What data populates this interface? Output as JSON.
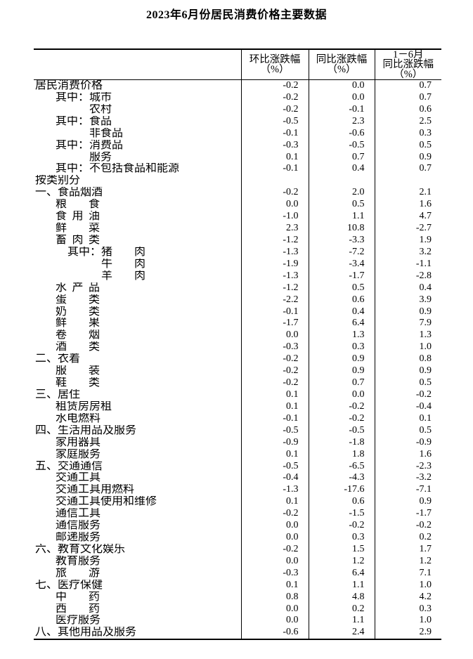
{
  "title": "2023年6月份居民消费价格主要数据",
  "colors": {
    "text": "#000000",
    "background": "#ffffff",
    "border": "#000000"
  },
  "table": {
    "columns": [
      {
        "label": ""
      },
      {
        "label": "环比涨跌幅\n（%）"
      },
      {
        "label": "同比涨跌幅\n（%）"
      },
      {
        "label": "1－6月\n同比涨跌幅\n（%）"
      }
    ],
    "rows": [
      {
        "level": 0,
        "prefix": "",
        "label": "居民消费价格",
        "sp": false,
        "mom": "-0.2",
        "yoy": "0.0",
        "ytd": "0.7"
      },
      {
        "level": 1,
        "prefix": "其中：",
        "label": "城市",
        "sp": false,
        "mom": "-0.2",
        "yoy": "0.0",
        "ytd": "0.7"
      },
      {
        "level": 2,
        "prefix": "",
        "label": "农村",
        "sp": false,
        "mom": "-0.2",
        "yoy": "-0.1",
        "ytd": "0.6"
      },
      {
        "level": 1,
        "prefix": "其中：",
        "label": "食品",
        "sp": false,
        "mom": "-0.5",
        "yoy": "2.3",
        "ytd": "2.5"
      },
      {
        "level": 2,
        "prefix": "",
        "label": "非食品",
        "sp": false,
        "mom": "-0.1",
        "yoy": "-0.6",
        "ytd": "0.3"
      },
      {
        "level": 1,
        "prefix": "其中：",
        "label": "消费品",
        "sp": false,
        "mom": "-0.3",
        "yoy": "-0.5",
        "ytd": "0.5"
      },
      {
        "level": 2,
        "prefix": "",
        "label": "服务",
        "sp": false,
        "mom": "0.1",
        "yoy": "0.7",
        "ytd": "0.9"
      },
      {
        "level": 1,
        "prefix": "其中：",
        "label": "不包括食品和能源",
        "sp": false,
        "mom": "-0.1",
        "yoy": "0.4",
        "ytd": "0.7"
      },
      {
        "level": 0,
        "prefix": "",
        "label": "按类别分",
        "sp": false,
        "mom": "",
        "yoy": "",
        "ytd": ""
      },
      {
        "level": 0,
        "prefix": "",
        "label": "一、食品烟酒",
        "sp": false,
        "mom": "-0.2",
        "yoy": "2.0",
        "ytd": "2.1"
      },
      {
        "level": 1,
        "prefix": "",
        "label": "粮食",
        "sp": true,
        "mom": "0.0",
        "yoy": "0.5",
        "ytd": "1.6"
      },
      {
        "level": 1,
        "prefix": "",
        "label": "食用油",
        "sp": true,
        "mom": "-1.0",
        "yoy": "1.1",
        "ytd": "4.7"
      },
      {
        "level": 1,
        "prefix": "",
        "label": "鲜菜",
        "sp": true,
        "mom": "2.3",
        "yoy": "10.8",
        "ytd": "-2.7"
      },
      {
        "level": 1,
        "prefix": "",
        "label": "畜肉类",
        "sp": true,
        "mom": "-1.2",
        "yoy": "-3.3",
        "ytd": "1.9"
      },
      {
        "level": 3,
        "prefix": "其中：",
        "label": "猪肉",
        "sp": true,
        "mom": "-1.3",
        "yoy": "-7.2",
        "ytd": "3.2"
      },
      {
        "level": 4,
        "prefix": "",
        "label": "牛肉",
        "sp": true,
        "mom": "-1.9",
        "yoy": "-3.4",
        "ytd": "-1.1"
      },
      {
        "level": 4,
        "prefix": "",
        "label": "羊肉",
        "sp": true,
        "mom": "-1.3",
        "yoy": "-1.7",
        "ytd": "-2.8"
      },
      {
        "level": 1,
        "prefix": "",
        "label": "水产品",
        "sp": true,
        "mom": "-1.2",
        "yoy": "0.5",
        "ytd": "0.4"
      },
      {
        "level": 1,
        "prefix": "",
        "label": "蛋类",
        "sp": true,
        "mom": "-2.2",
        "yoy": "0.6",
        "ytd": "3.9"
      },
      {
        "level": 1,
        "prefix": "",
        "label": "奶类",
        "sp": true,
        "mom": "-0.1",
        "yoy": "0.4",
        "ytd": "0.9"
      },
      {
        "level": 1,
        "prefix": "",
        "label": "鲜果",
        "sp": true,
        "mom": "-1.7",
        "yoy": "6.4",
        "ytd": "7.9"
      },
      {
        "level": 1,
        "prefix": "",
        "label": "卷烟",
        "sp": true,
        "mom": "0.0",
        "yoy": "1.3",
        "ytd": "1.3"
      },
      {
        "level": 1,
        "prefix": "",
        "label": "酒类",
        "sp": true,
        "mom": "-0.3",
        "yoy": "0.3",
        "ytd": "1.0"
      },
      {
        "level": 0,
        "prefix": "",
        "label": "二、衣着",
        "sp": false,
        "mom": "-0.2",
        "yoy": "0.9",
        "ytd": "0.8"
      },
      {
        "level": 1,
        "prefix": "",
        "label": "服装",
        "sp": true,
        "mom": "-0.2",
        "yoy": "0.9",
        "ytd": "0.9"
      },
      {
        "level": 1,
        "prefix": "",
        "label": "鞋类",
        "sp": true,
        "mom": "-0.2",
        "yoy": "0.7",
        "ytd": "0.5"
      },
      {
        "level": 0,
        "prefix": "",
        "label": "三、居住",
        "sp": false,
        "mom": "0.1",
        "yoy": "0.0",
        "ytd": "-0.2"
      },
      {
        "level": 1,
        "prefix": "",
        "label": "租赁房房租",
        "sp": false,
        "mom": "0.1",
        "yoy": "-0.2",
        "ytd": "-0.4"
      },
      {
        "level": 1,
        "prefix": "",
        "label": "水电燃料",
        "sp": false,
        "mom": "-0.1",
        "yoy": "-0.2",
        "ytd": "0.1"
      },
      {
        "level": 0,
        "prefix": "",
        "label": "四、生活用品及服务",
        "sp": false,
        "mom": "-0.5",
        "yoy": "-0.5",
        "ytd": "0.5"
      },
      {
        "level": 1,
        "prefix": "",
        "label": "家用器具",
        "sp": false,
        "mom": "-0.9",
        "yoy": "-1.8",
        "ytd": "-0.9"
      },
      {
        "level": 1,
        "prefix": "",
        "label": "家庭服务",
        "sp": false,
        "mom": "0.1",
        "yoy": "1.8",
        "ytd": "1.6"
      },
      {
        "level": 0,
        "prefix": "",
        "label": "五、交通通信",
        "sp": false,
        "mom": "-0.5",
        "yoy": "-6.5",
        "ytd": "-2.3"
      },
      {
        "level": 1,
        "prefix": "",
        "label": "交通工具",
        "sp": false,
        "mom": "-0.4",
        "yoy": "-4.3",
        "ytd": "-3.2"
      },
      {
        "level": 1,
        "prefix": "",
        "label": "交通工具用燃料",
        "sp": false,
        "mom": "-1.3",
        "yoy": "-17.6",
        "ytd": "-7.1"
      },
      {
        "level": 1,
        "prefix": "",
        "label": "交通工具使用和维修",
        "sp": false,
        "mom": "0.1",
        "yoy": "0.6",
        "ytd": "0.9"
      },
      {
        "level": 1,
        "prefix": "",
        "label": "通信工具",
        "sp": false,
        "mom": "-0.2",
        "yoy": "-1.5",
        "ytd": "-1.7"
      },
      {
        "level": 1,
        "prefix": "",
        "label": "通信服务",
        "sp": false,
        "mom": "0.0",
        "yoy": "-0.2",
        "ytd": "-0.2"
      },
      {
        "level": 1,
        "prefix": "",
        "label": "邮递服务",
        "sp": false,
        "mom": "0.0",
        "yoy": "0.3",
        "ytd": "0.2"
      },
      {
        "level": 0,
        "prefix": "",
        "label": "六、教育文化娱乐",
        "sp": false,
        "mom": "-0.2",
        "yoy": "1.5",
        "ytd": "1.7"
      },
      {
        "level": 1,
        "prefix": "",
        "label": "教育服务",
        "sp": false,
        "mom": "0.0",
        "yoy": "1.2",
        "ytd": "1.2"
      },
      {
        "level": 1,
        "prefix": "",
        "label": "旅游",
        "sp": true,
        "mom": "-0.3",
        "yoy": "6.4",
        "ytd": "7.1"
      },
      {
        "level": 0,
        "prefix": "",
        "label": "七、医疗保健",
        "sp": false,
        "mom": "0.1",
        "yoy": "1.1",
        "ytd": "1.0"
      },
      {
        "level": 1,
        "prefix": "",
        "label": "中药",
        "sp": true,
        "mom": "0.8",
        "yoy": "4.8",
        "ytd": "4.2"
      },
      {
        "level": 1,
        "prefix": "",
        "label": "西药",
        "sp": true,
        "mom": "0.0",
        "yoy": "0.2",
        "ytd": "0.3"
      },
      {
        "level": 1,
        "prefix": "",
        "label": "医疗服务",
        "sp": false,
        "mom": "0.0",
        "yoy": "1.1",
        "ytd": "1.0"
      },
      {
        "level": 0,
        "prefix": "",
        "label": "八、其他用品及服务",
        "sp": false,
        "mom": "-0.6",
        "yoy": "2.4",
        "ytd": "2.9"
      }
    ]
  }
}
